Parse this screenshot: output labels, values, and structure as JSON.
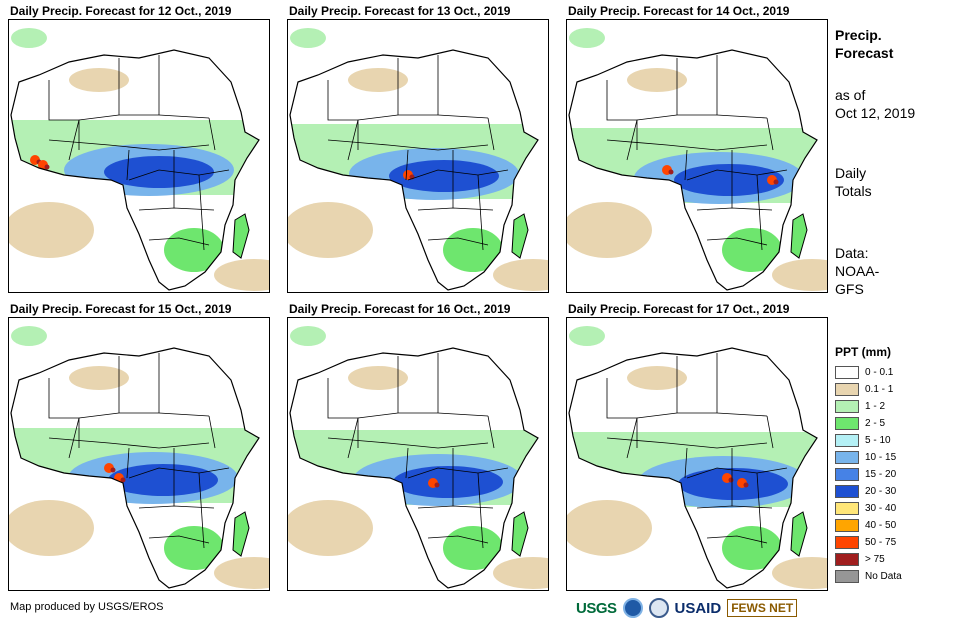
{
  "panels": [
    {
      "title": "Daily Precip. Forecast for 12 Oct., 2019"
    },
    {
      "title": "Daily Precip. Forecast for 13 Oct., 2019"
    },
    {
      "title": "Daily Precip. Forecast for 14 Oct., 2019"
    },
    {
      "title": "Daily Precip. Forecast for 15 Oct., 2019"
    },
    {
      "title": "Daily Precip. Forecast for 16 Oct., 2019"
    },
    {
      "title": "Daily Precip. Forecast for 17 Oct., 2019"
    }
  ],
  "side": {
    "heading1": "Precip.",
    "heading2": "Forecast",
    "asof1": "as of",
    "asof2": "Oct 12, 2019",
    "daily1": "Daily",
    "daily2": "Totals",
    "data1": "Data:",
    "data2": "NOAA-",
    "data3": "GFS"
  },
  "legend": {
    "title": "PPT (mm)",
    "items": [
      {
        "label": "0 - 0.1",
        "color": "#ffffff"
      },
      {
        "label": "0.1 - 1",
        "color": "#e8d5b0"
      },
      {
        "label": "1 - 2",
        "color": "#b4f0b4"
      },
      {
        "label": "2 - 5",
        "color": "#6ee66e"
      },
      {
        "label": "5 - 10",
        "color": "#b4f0f5"
      },
      {
        "label": "10 - 15",
        "color": "#78b4eb"
      },
      {
        "label": "15 - 20",
        "color": "#4682e6"
      },
      {
        "label": "20 - 30",
        "color": "#1e50d2"
      },
      {
        "label": "30 - 40",
        "color": "#ffe678"
      },
      {
        "label": "40 - 50",
        "color": "#ffa500"
      },
      {
        "label": "50 - 75",
        "color": "#ff4500"
      },
      {
        "label": "> 75",
        "color": "#a01e1e"
      },
      {
        "label": "No Data",
        "color": "#969696"
      }
    ]
  },
  "credit": "Map produced by USGS/EROS",
  "logos": {
    "usgs": "USGS",
    "noaa": "NOAA",
    "usaid": "USAID",
    "fews": "FEWS NET"
  }
}
